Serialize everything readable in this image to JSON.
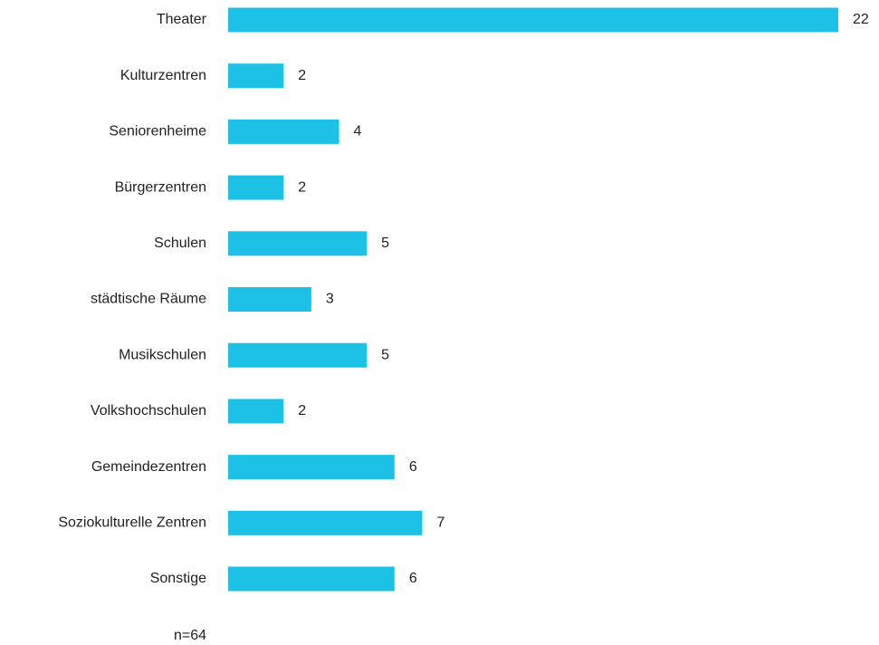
{
  "chart_data": {
    "type": "bar",
    "orientation": "horizontal",
    "categories": [
      "Theater",
      "Kulturzentren",
      "Seniorenheime",
      "Bürgerzentren",
      "Schulen",
      "städtische Räume",
      "Musikschulen",
      "Volkshochschulen",
      "Gemeindezentren",
      "Soziokulturelle Zentren",
      "Sonstige"
    ],
    "values": [
      22,
      2,
      4,
      2,
      5,
      3,
      5,
      2,
      6,
      7,
      6
    ],
    "color": "#1dc1e6",
    "annotation": "n=64"
  }
}
